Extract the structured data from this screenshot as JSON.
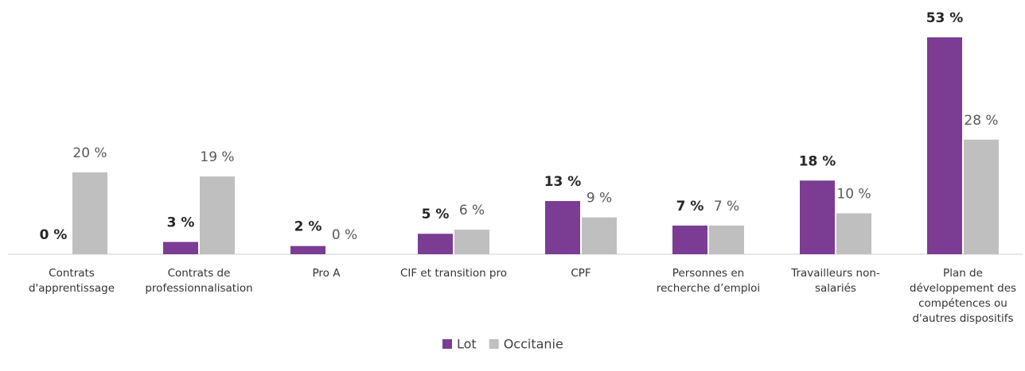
{
  "chart_data": {
    "type": "bar",
    "categories": [
      [
        "Contrats",
        "d'apprentissage"
      ],
      [
        "Contrats de",
        "professionnalisation"
      ],
      [
        "Pro A"
      ],
      [
        "CIF et transition pro"
      ],
      [
        "CPF"
      ],
      [
        "Personnes en",
        "recherche d’emploi"
      ],
      [
        "Travailleurs non-",
        "salariés"
      ],
      [
        "Plan de",
        "développement des",
        "compétences ou",
        "d'autres dispositifs"
      ]
    ],
    "series": [
      {
        "name": "Lot",
        "color": "#7b3c93",
        "values": [
          0,
          3,
          2,
          5,
          13,
          7,
          18,
          53
        ],
        "value_labels": [
          "0 %",
          "3 %",
          "2 %",
          "5 %",
          "13 %",
          "7 %",
          "18 %",
          "53 %"
        ]
      },
      {
        "name": "Occitanie",
        "color": "#bfbfbf",
        "values": [
          20,
          19,
          0,
          6,
          9,
          7,
          10,
          28
        ],
        "value_labels": [
          "20 %",
          "19 %",
          "0 %",
          "6 %",
          "9 %",
          "7 %",
          "10 %",
          "28 %"
        ]
      }
    ]
  }
}
